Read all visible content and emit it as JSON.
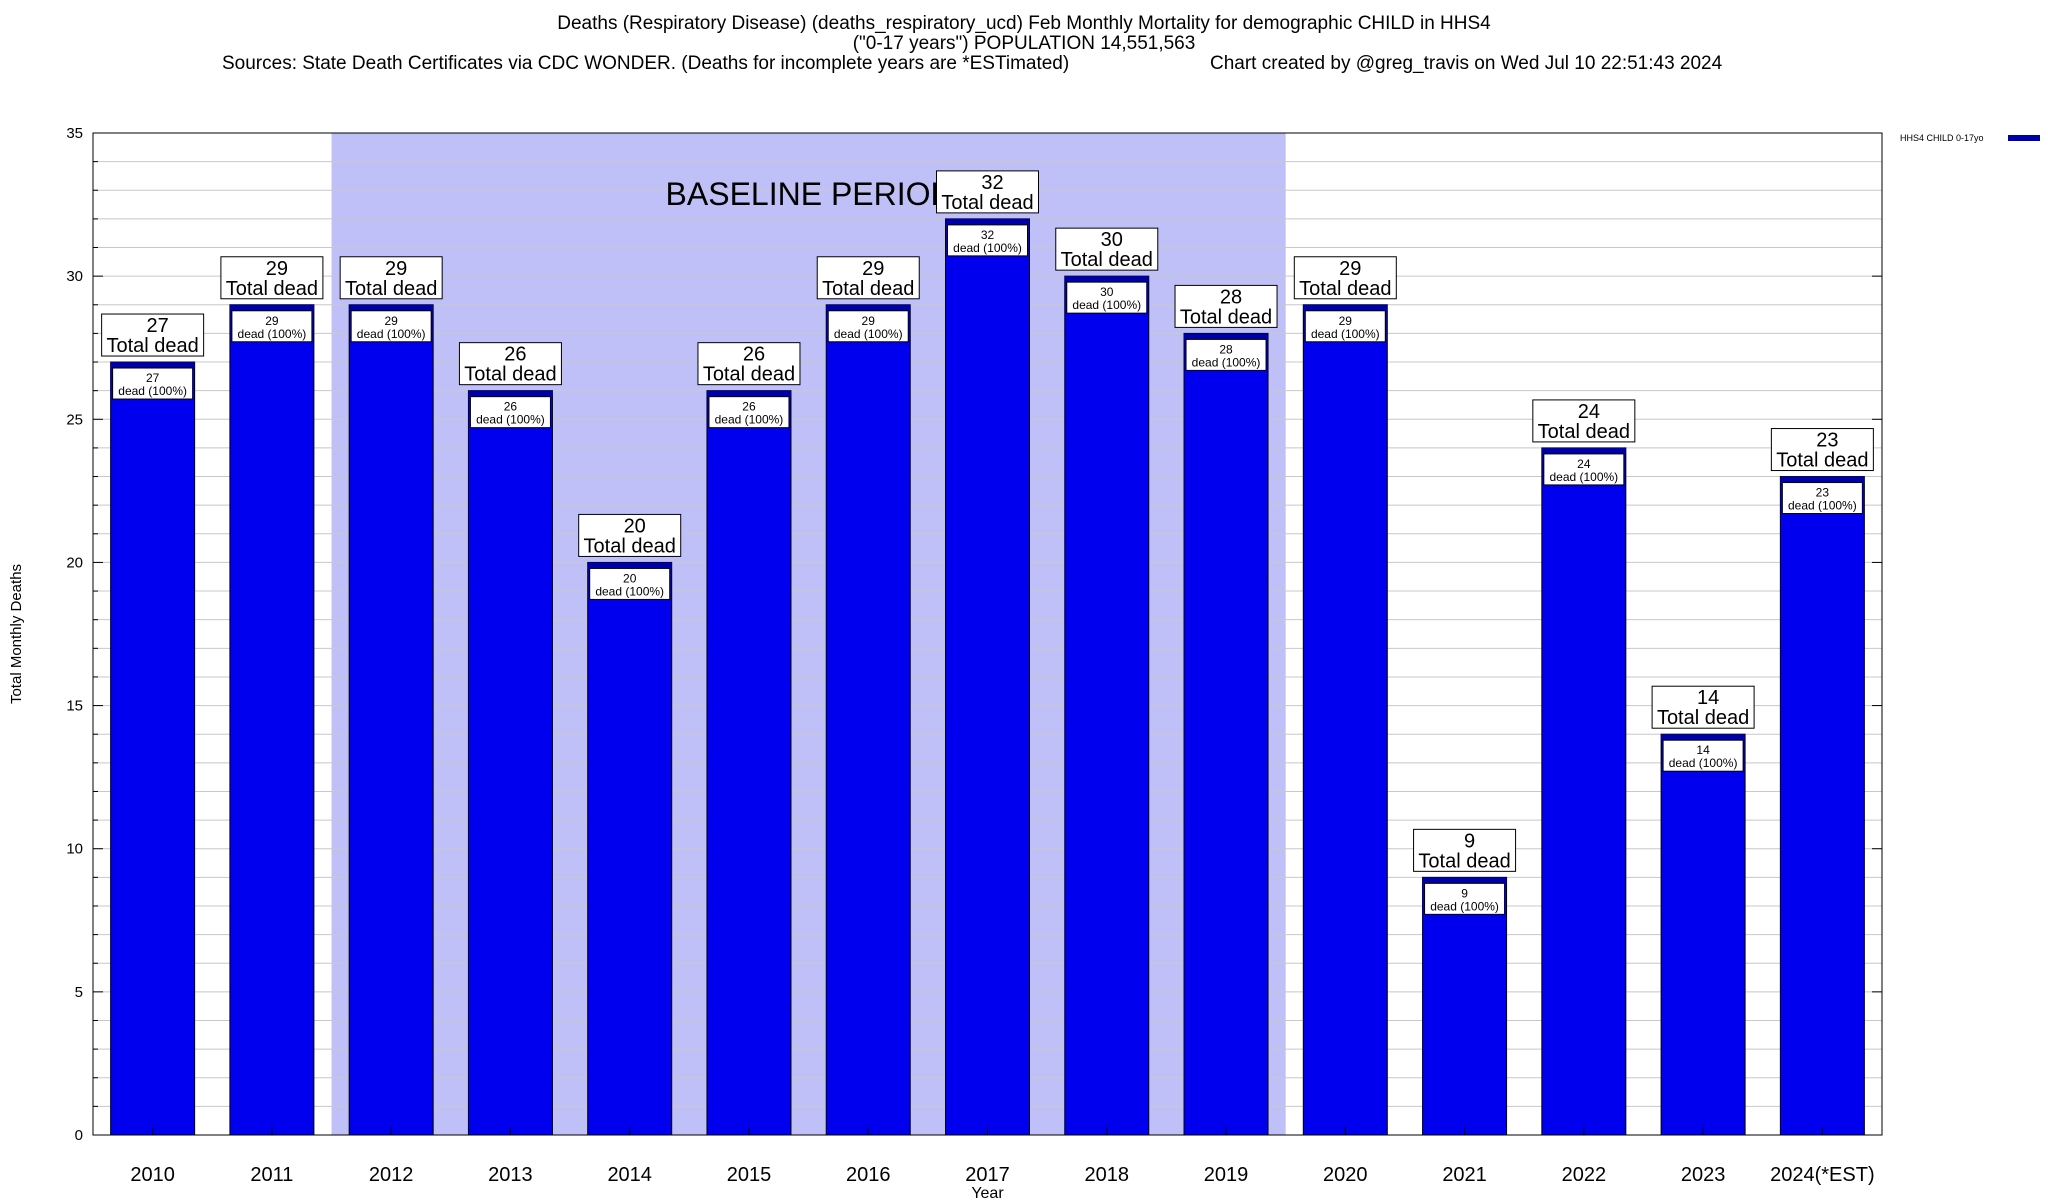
{
  "header": {
    "title_line1": "Deaths (Respiratory Disease) (deaths_respiratory_ucd) Feb Monthly Mortality for demographic CHILD in HHS4",
    "title_line2": "(\"0-17 years\") POPULATION 14,551,563",
    "sources": "Sources: State Death Certificates via CDC WONDER. (Deaths for incomplete years are *ESTimated)",
    "credit": "Chart created by @greg_travis on Wed Jul 10 22:51:43 2024"
  },
  "chart_data": {
    "type": "bar",
    "categories": [
      "2010",
      "2011",
      "2012",
      "2013",
      "2014",
      "2015",
      "2016",
      "2017",
      "2018",
      "2019",
      "2020",
      "2021",
      "2022",
      "2023",
      "2024(*EST)"
    ],
    "series": [
      {
        "name": "HHS4 CHILD 0-17yo",
        "values": [
          27,
          29,
          29,
          26,
          20,
          26,
          29,
          32,
          30,
          28,
          29,
          9,
          24,
          14,
          23
        ]
      }
    ],
    "xlabel": "Year",
    "ylabel": "Total Monthly Deaths",
    "ylim": [
      0,
      35
    ],
    "yticks": [
      0,
      5,
      10,
      15,
      20,
      25,
      30,
      35
    ],
    "grid": true,
    "legend_position": "top-right",
    "baseline_period": {
      "label": "BASELINE PERIOD",
      "start": "2012",
      "end": "2019"
    },
    "total_label_suffix": "Total dead",
    "inner_label_suffix": "dead (100%)",
    "colors": {
      "bar": "#0000ee",
      "bar_top": "#0000aa",
      "baseline_shade": "#c0c0f8",
      "grid": "#c8c8c8"
    }
  }
}
